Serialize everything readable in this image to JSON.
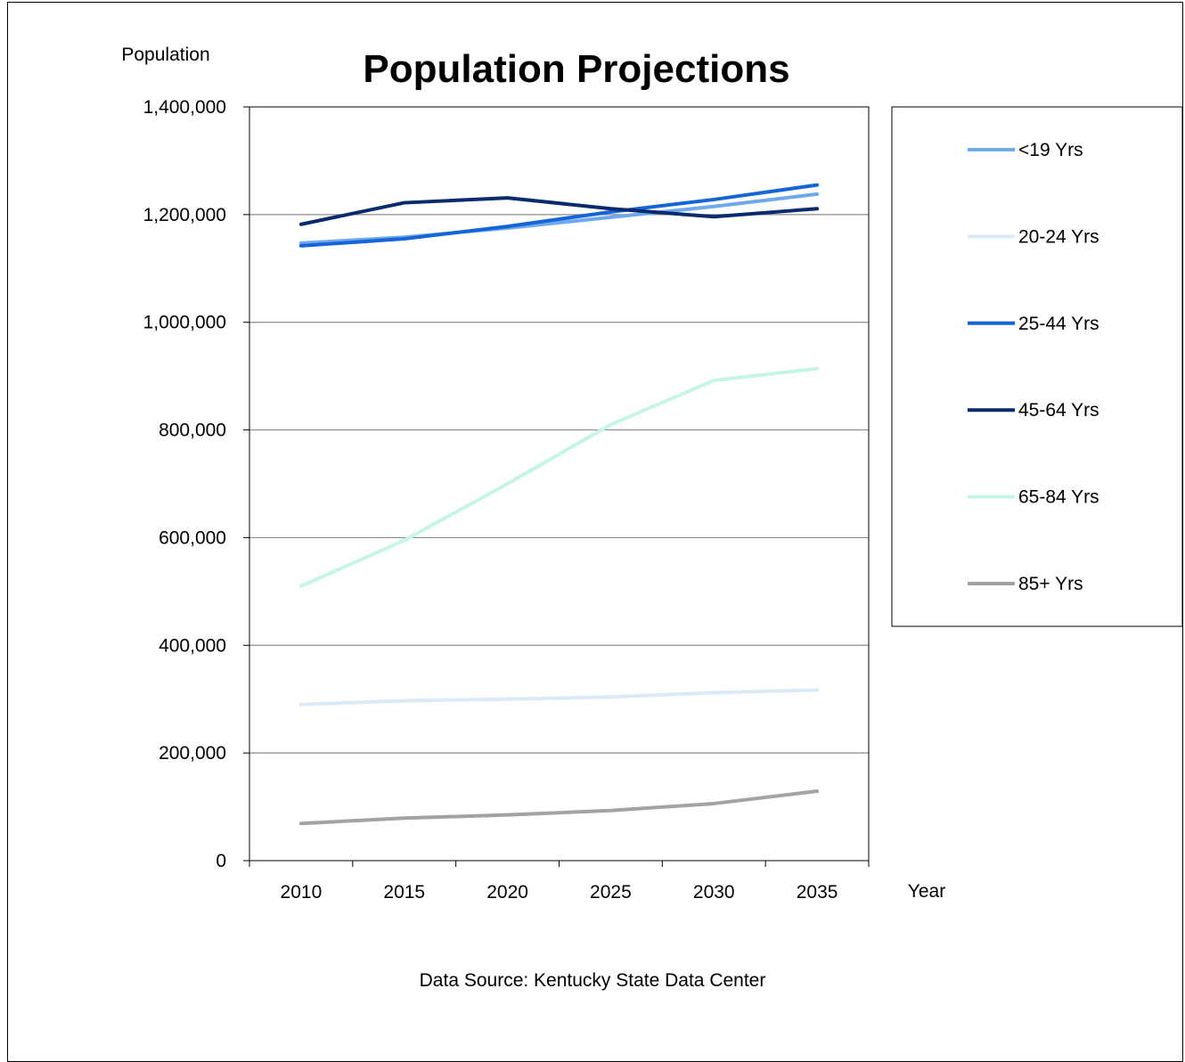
{
  "chart_data": {
    "type": "line",
    "title": "Population Projections",
    "ylabel": "Population",
    "xlabel": "Year",
    "source": "Data Source:  Kentucky State Data Center",
    "x": [
      "2010",
      "2015",
      "2020",
      "2025",
      "2030",
      "2035"
    ],
    "yticks": [
      "0",
      "200,000",
      "400,000",
      "600,000",
      "800,000",
      "1,000,000",
      "1,200,000",
      "1,400,000"
    ],
    "ylim": [
      0,
      1400000
    ],
    "grid": true,
    "legend_position": "right",
    "series": [
      {
        "name": "<19 Yrs",
        "color": "#6fa8ec",
        "values": [
          1147000,
          1158000,
          1175000,
          1195000,
          1215000,
          1238000
        ]
      },
      {
        "name": "20-24 Yrs",
        "color": "#dbeaf6",
        "values": [
          290000,
          297000,
          300000,
          304000,
          312000,
          317000
        ]
      },
      {
        "name": "25-44 Yrs",
        "color": "#1565d8",
        "values": [
          1142000,
          1155000,
          1178000,
          1205000,
          1228000,
          1255000
        ]
      },
      {
        "name": "45-64 Yrs",
        "color": "#0a2a6e",
        "values": [
          1182000,
          1222000,
          1231000,
          1211000,
          1196000,
          1211000
        ]
      },
      {
        "name": "65-84 Yrs",
        "color": "#c4f5e6",
        "values": [
          510000,
          595000,
          700000,
          810000,
          892000,
          914000
        ]
      },
      {
        "name": "85+ Yrs",
        "color": "#a3a3a3",
        "values": [
          69000,
          79000,
          85000,
          93000,
          106000,
          129000
        ]
      }
    ]
  }
}
